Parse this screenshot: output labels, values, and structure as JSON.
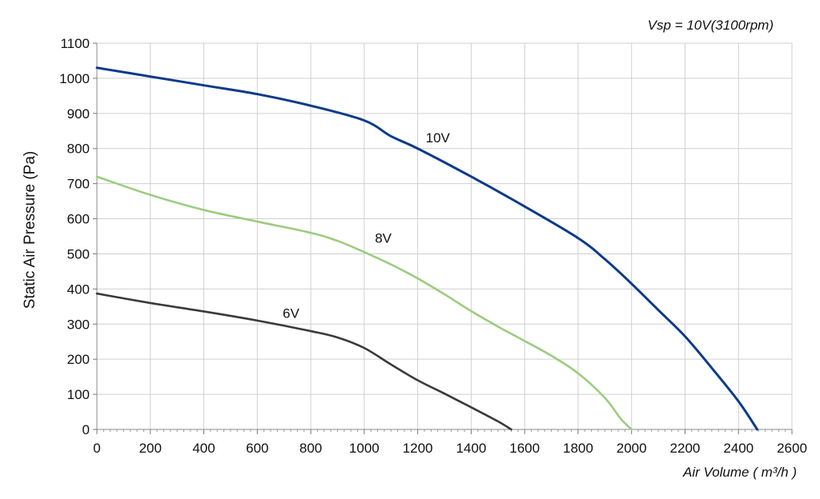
{
  "chart_data": {
    "type": "line",
    "subtitle": "Vsp = 10V(3100rpm)",
    "xlabel": "Air Volume ( m³/h )",
    "ylabel": "Static Air Pressure  (Pa)",
    "xlim": [
      0,
      2600
    ],
    "ylim": [
      0,
      1100
    ],
    "x_ticks": [
      "0",
      "200",
      "400",
      "600",
      "800",
      "1000",
      "1200",
      "1400",
      "1600",
      "1800",
      "2000",
      "2200",
      "2400",
      "2600"
    ],
    "y_ticks": [
      "0",
      "100",
      "200",
      "300",
      "400",
      "500",
      "600",
      "700",
      "800",
      "900",
      "1000",
      "1100"
    ],
    "grid": true,
    "series": [
      {
        "name": "10V",
        "color": "#0b3a8a",
        "points": [
          [
            0,
            1030
          ],
          [
            200,
            1005
          ],
          [
            400,
            980
          ],
          [
            600,
            955
          ],
          [
            800,
            922
          ],
          [
            1000,
            880
          ],
          [
            1100,
            835
          ],
          [
            1200,
            800
          ],
          [
            1400,
            720
          ],
          [
            1600,
            635
          ],
          [
            1800,
            545
          ],
          [
            1900,
            485
          ],
          [
            2000,
            415
          ],
          [
            2100,
            340
          ],
          [
            2200,
            265
          ],
          [
            2300,
            175
          ],
          [
            2400,
            80
          ],
          [
            2470,
            0
          ]
        ]
      },
      {
        "name": "8V",
        "color": "#9ccc7e",
        "points": [
          [
            0,
            720
          ],
          [
            200,
            668
          ],
          [
            400,
            625
          ],
          [
            600,
            592
          ],
          [
            800,
            560
          ],
          [
            900,
            537
          ],
          [
            1000,
            505
          ],
          [
            1100,
            470
          ],
          [
            1200,
            430
          ],
          [
            1300,
            385
          ],
          [
            1400,
            337
          ],
          [
            1500,
            293
          ],
          [
            1600,
            252
          ],
          [
            1700,
            210
          ],
          [
            1800,
            160
          ],
          [
            1900,
            90
          ],
          [
            1960,
            30
          ],
          [
            2000,
            0
          ]
        ]
      },
      {
        "name": "6V",
        "color": "#3a3a3a",
        "points": [
          [
            0,
            387
          ],
          [
            200,
            360
          ],
          [
            400,
            336
          ],
          [
            600,
            310
          ],
          [
            800,
            280
          ],
          [
            900,
            262
          ],
          [
            1000,
            232
          ],
          [
            1100,
            185
          ],
          [
            1200,
            140
          ],
          [
            1300,
            102
          ],
          [
            1400,
            63
          ],
          [
            1500,
            23
          ],
          [
            1550,
            0
          ]
        ]
      }
    ]
  }
}
